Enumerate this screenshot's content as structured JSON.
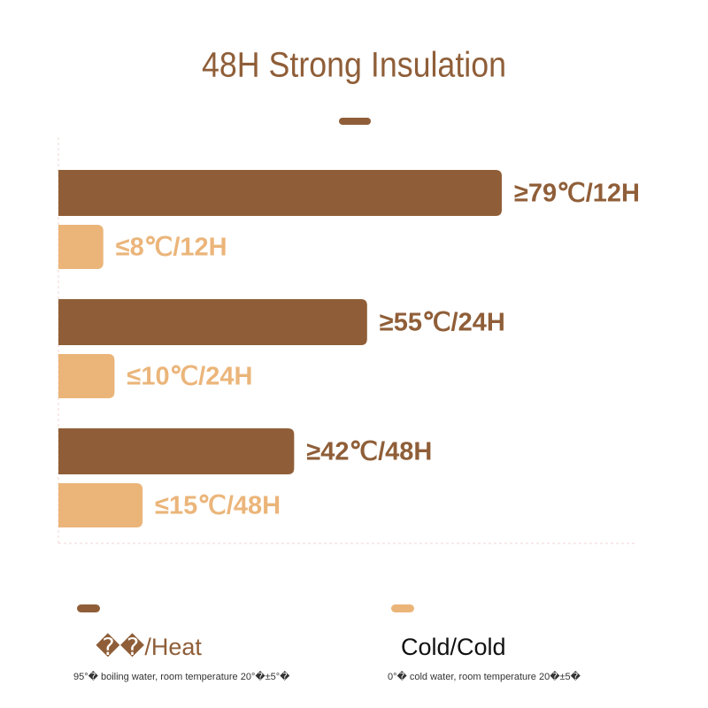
{
  "chart_data": {
    "type": "bar",
    "orientation": "horizontal",
    "title": "48H Strong Insulation",
    "series": [
      {
        "name": "��/Heat",
        "color": "#8f5e38",
        "values": [
          79,
          55,
          42
        ],
        "value_labels": [
          "≥79℃/12H",
          "≥55℃/24H",
          "≥42℃/48H"
        ],
        "note": "95°� boiling water, room temperature 20°�±5°�"
      },
      {
        "name": "Cold/Cold",
        "color": "#ebb57a",
        "values": [
          8,
          10,
          15
        ],
        "value_labels": [
          "≤8℃/12H",
          "≤10℃/24H",
          "≤15℃/48H"
        ],
        "note": "0°� cold water, room temperature 20�±5�"
      }
    ]
  }
}
